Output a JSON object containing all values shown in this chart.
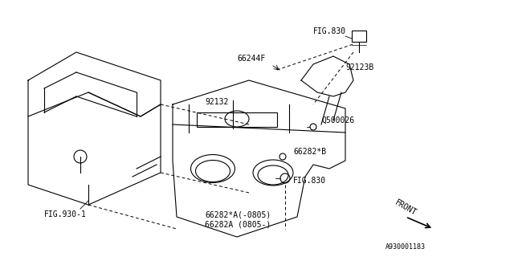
{
  "bg_color": "#ffffff",
  "line_color": "#000000",
  "text_color": "#000000",
  "light_gray": "#aaaaaa",
  "diagram_color": "#333333",
  "fig_width": 6.4,
  "fig_height": 3.2,
  "labels": {
    "FIG830_top": "FIG.830",
    "66244F": "66244F",
    "92123B": "92123B",
    "92132": "92132",
    "Q500026": "Q500026",
    "66282B": "66282*B",
    "FIG830_bot": "FIG.830",
    "66282A_dash": "66282*A(-0805)",
    "66282A": "66282A (0805-)",
    "FIG930": "FIG.930-1",
    "FRONT": "FRONT",
    "part_num": "A930001183"
  }
}
